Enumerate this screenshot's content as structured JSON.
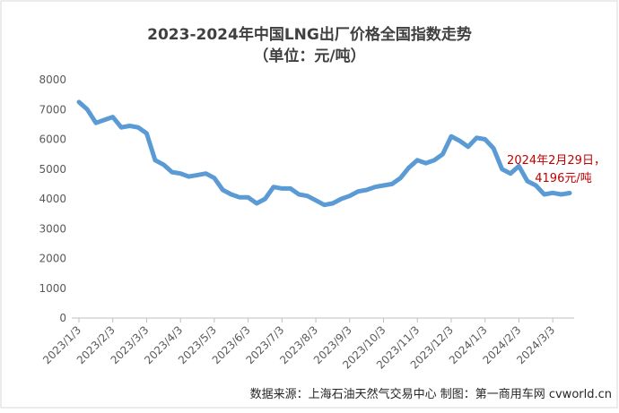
{
  "chart_data": {
    "type": "line",
    "title": "2023-2024年中国LNG出厂价格全国指数走势",
    "subtitle": "（单位：元/吨）",
    "categories": [
      "2023/1/3",
      null,
      null,
      null,
      "2023/2/3",
      null,
      null,
      null,
      "2023/3/3",
      null,
      null,
      null,
      "2023/4/3",
      null,
      null,
      null,
      "2023/5/3",
      null,
      null,
      null,
      "2023/6/3",
      null,
      null,
      null,
      "2023/7/3",
      null,
      null,
      null,
      "2023/8/3",
      null,
      null,
      null,
      "2023/9/3",
      null,
      null,
      null,
      "2023/10/3",
      null,
      null,
      null,
      "2023/11/3",
      null,
      null,
      null,
      "2023/12/3",
      null,
      null,
      null,
      "2024/1/3",
      null,
      null,
      null,
      "2024/2/3",
      null,
      null,
      null,
      "2024/3/3",
      null,
      null
    ],
    "series": [
      {
        "name": "LNG出厂价格全国指数",
        "color": "#5b9bd5",
        "values": [
          7250,
          7000,
          6550,
          6650,
          6750,
          6400,
          6450,
          6400,
          6200,
          5300,
          5150,
          4900,
          4850,
          4750,
          4800,
          4850,
          4700,
          4300,
          4150,
          4050,
          4050,
          3850,
          4000,
          4400,
          4350,
          4350,
          4150,
          4100,
          3950,
          3800,
          3850,
          4000,
          4100,
          4250,
          4300,
          4400,
          4450,
          4500,
          4700,
          5050,
          5300,
          5200,
          5300,
          5500,
          6100,
          5950,
          5750,
          6050,
          6000,
          5700,
          5000,
          4850,
          5100,
          4600,
          4450,
          4150,
          4200,
          4150,
          4196
        ]
      }
    ],
    "ylim": [
      0,
      8000
    ],
    "yticks": [
      0,
      1000,
      2000,
      3000,
      4000,
      5000,
      6000,
      7000,
      8000
    ],
    "grid": false,
    "annotations": [
      "2024年2月29日，",
      "4196元/吨"
    ],
    "source": "数据来源：上海石油天然气交易中心 制图：第一商用车网 cvworld.cn"
  }
}
